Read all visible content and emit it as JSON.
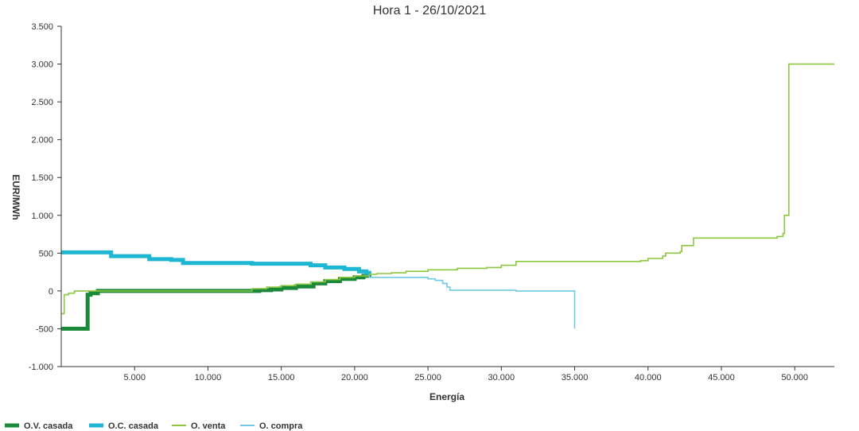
{
  "chart_data": {
    "type": "line",
    "title": "Hora 1 - 26/10/2021",
    "xlabel": "Energía",
    "ylabel": "EUR/MWh",
    "xlim": [
      0,
      52700
    ],
    "ylim": [
      -1000,
      3500
    ],
    "x_ticks": [
      5000,
      10000,
      15000,
      20000,
      25000,
      30000,
      35000,
      40000,
      45000,
      50000
    ],
    "x_tick_labels": [
      "5.000",
      "10.000",
      "15.000",
      "20.000",
      "25.000",
      "30.000",
      "35.000",
      "40.000",
      "45.000",
      "50.000"
    ],
    "y_ticks": [
      -1000,
      -500,
      0,
      500,
      1000,
      1500,
      2000,
      2500,
      3000,
      3500
    ],
    "y_tick_labels": [
      "-1.000",
      "-500",
      "0",
      "500",
      "1.000",
      "1.500",
      "2.000",
      "2.500",
      "3.000",
      "3.500"
    ],
    "grid": false,
    "legend_position": "bottom-left",
    "series": [
      {
        "name": "O.V. casada",
        "color": "#1a8a3a",
        "points": [
          [
            0,
            -500
          ],
          [
            1800,
            -500
          ],
          [
            1800,
            -50
          ],
          [
            2000,
            -50
          ],
          [
            2000,
            -30
          ],
          [
            2500,
            -30
          ],
          [
            2500,
            0
          ],
          [
            13500,
            0
          ],
          [
            13500,
            10
          ],
          [
            14300,
            10
          ],
          [
            14300,
            20
          ],
          [
            15000,
            20
          ],
          [
            15000,
            40
          ],
          [
            16000,
            40
          ],
          [
            16000,
            60
          ],
          [
            17200,
            60
          ],
          [
            17200,
            100
          ],
          [
            18000,
            100
          ],
          [
            18000,
            130
          ],
          [
            19000,
            130
          ],
          [
            19000,
            160
          ],
          [
            20000,
            160
          ],
          [
            20000,
            180
          ],
          [
            20600,
            180
          ],
          [
            20600,
            200
          ],
          [
            21000,
            200
          ],
          [
            21000,
            210
          ]
        ]
      },
      {
        "name": "O.C. casada",
        "color": "#1fb6d3",
        "points": [
          [
            0,
            510
          ],
          [
            3400,
            510
          ],
          [
            3400,
            460
          ],
          [
            6000,
            460
          ],
          [
            6000,
            420
          ],
          [
            7500,
            420
          ],
          [
            7500,
            410
          ],
          [
            8300,
            410
          ],
          [
            8300,
            370
          ],
          [
            13000,
            370
          ],
          [
            13000,
            360
          ],
          [
            17000,
            360
          ],
          [
            17000,
            340
          ],
          [
            18000,
            340
          ],
          [
            18000,
            310
          ],
          [
            19300,
            310
          ],
          [
            19300,
            290
          ],
          [
            20300,
            290
          ],
          [
            20300,
            260
          ],
          [
            20800,
            260
          ],
          [
            20800,
            240
          ],
          [
            21000,
            240
          ],
          [
            21000,
            210
          ]
        ]
      },
      {
        "name": "O. venta",
        "color": "#8dc63f",
        "points": [
          [
            0,
            -300
          ],
          [
            200,
            -300
          ],
          [
            200,
            -50
          ],
          [
            500,
            -50
          ],
          [
            500,
            -30
          ],
          [
            900,
            -30
          ],
          [
            900,
            0
          ],
          [
            13000,
            0
          ],
          [
            13000,
            30
          ],
          [
            14000,
            30
          ],
          [
            14000,
            50
          ],
          [
            15000,
            50
          ],
          [
            15000,
            70
          ],
          [
            16000,
            70
          ],
          [
            16000,
            90
          ],
          [
            17000,
            90
          ],
          [
            17000,
            120
          ],
          [
            18000,
            120
          ],
          [
            18000,
            150
          ],
          [
            19000,
            150
          ],
          [
            19000,
            180
          ],
          [
            20000,
            180
          ],
          [
            20000,
            200
          ],
          [
            21000,
            200
          ],
          [
            21000,
            220
          ],
          [
            21500,
            220
          ],
          [
            21500,
            230
          ],
          [
            22500,
            230
          ],
          [
            22500,
            240
          ],
          [
            23500,
            240
          ],
          [
            23500,
            260
          ],
          [
            25000,
            260
          ],
          [
            25000,
            280
          ],
          [
            27000,
            280
          ],
          [
            27000,
            300
          ],
          [
            29000,
            300
          ],
          [
            29000,
            310
          ],
          [
            30000,
            310
          ],
          [
            30000,
            340
          ],
          [
            31000,
            340
          ],
          [
            31000,
            390
          ],
          [
            39500,
            390
          ],
          [
            39500,
            400
          ],
          [
            40000,
            400
          ],
          [
            40000,
            430
          ],
          [
            41000,
            430
          ],
          [
            41000,
            460
          ],
          [
            41200,
            460
          ],
          [
            41200,
            500
          ],
          [
            42200,
            500
          ],
          [
            42200,
            520
          ],
          [
            42300,
            520
          ],
          [
            42300,
            600
          ],
          [
            43100,
            600
          ],
          [
            43100,
            700
          ],
          [
            48800,
            700
          ],
          [
            48800,
            720
          ],
          [
            49200,
            720
          ],
          [
            49200,
            760
          ],
          [
            49300,
            760
          ],
          [
            49300,
            1000
          ],
          [
            49600,
            1000
          ],
          [
            49600,
            3000
          ],
          [
            52700,
            3000
          ]
        ]
      },
      {
        "name": "O. compra",
        "color": "#6fcae3",
        "points": [
          [
            21000,
            210
          ],
          [
            21000,
            180
          ],
          [
            25000,
            180
          ],
          [
            25000,
            160
          ],
          [
            25500,
            160
          ],
          [
            25500,
            140
          ],
          [
            26000,
            140
          ],
          [
            26000,
            100
          ],
          [
            26300,
            100
          ],
          [
            26300,
            50
          ],
          [
            26500,
            50
          ],
          [
            26500,
            10
          ],
          [
            31000,
            10
          ],
          [
            31000,
            0
          ],
          [
            35000,
            0
          ],
          [
            35000,
            -500
          ]
        ]
      }
    ]
  }
}
